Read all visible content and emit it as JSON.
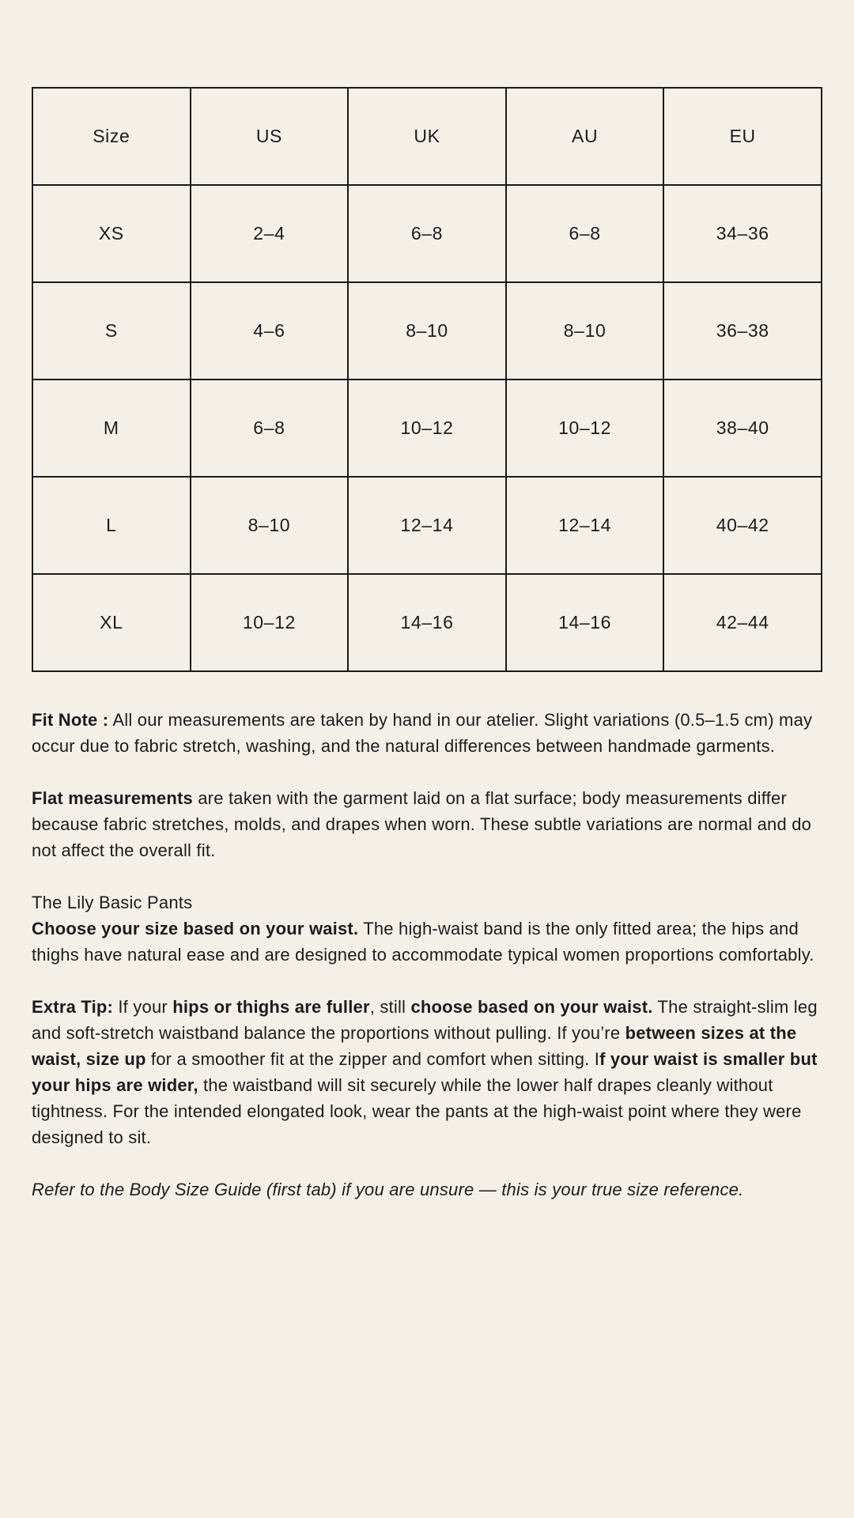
{
  "theme": {
    "background": "#f4f0e8",
    "text": "#1c1c1e",
    "table_border": "#1a1a1a"
  },
  "size_chart": {
    "columns": [
      "Size",
      "US",
      "UK",
      "AU",
      "EU"
    ],
    "rows": [
      [
        "XS",
        "2–4",
        "6–8",
        "6–8",
        "34–36"
      ],
      [
        "S",
        "4–6",
        "8–10",
        "8–10",
        "36–38"
      ],
      [
        "M",
        "6–8",
        "10–12",
        "10–12",
        "38–40"
      ],
      [
        "L",
        "8–10",
        "12–14",
        "12–14",
        "40–42"
      ],
      [
        "XL",
        "10–12",
        "14–16",
        "14–16",
        "42–44"
      ]
    ]
  },
  "notes": {
    "fit_note": [
      "Fit Note :",
      " All our measurements are taken by hand in our atelier. Slight variations (0.5–1.5 cm) may occur due to fabric stretch, washing, and the natural differences between handmade garments."
    ],
    "flat_measurements": [
      "Flat measurements",
      " are taken with the garment laid on a flat surface; body measurements differ because fabric stretches, molds, and drapes when worn. These subtle variations are normal and do not affect the overall fit."
    ],
    "product_title": "The Lily Basic Pants",
    "sizing_advice": [
      "Choose your size based on your waist.",
      " The high-waist band is the only fitted area; the hips and thighs have natural ease and are designed to accommodate typical women proportions comfortably."
    ],
    "extra_tip": [
      "Extra Tip:",
      " If your ",
      "hips or thighs are fuller",
      ", still ",
      "choose based on your waist.",
      " The straight-slim leg and soft-stretch waistband balance the proportions without pulling. If you’re ",
      "between sizes at the waist, size up",
      " for a smoother fit at the zipper and comfort when sitting. I",
      "f your waist is smaller but your hips are wider,",
      " the waistband will sit securely while the lower half drapes cleanly without tightness. For the intended elongated look, wear the pants at the high-waist point where they were designed to sit."
    ],
    "reference_note": "Refer to the Body Size Guide (first tab) if you are unsure — this is your true size reference."
  }
}
